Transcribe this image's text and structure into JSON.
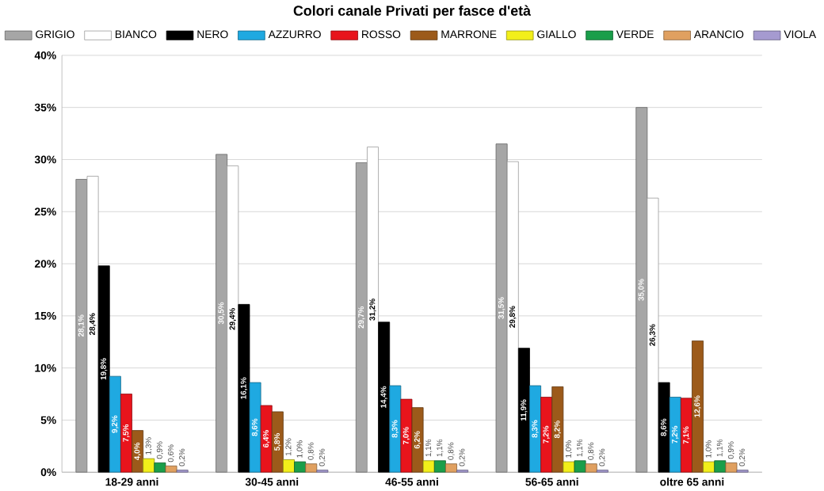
{
  "chart_data": {
    "type": "bar",
    "title": "Colori canale Privati per fasce d'età",
    "categories": [
      "18-29 anni",
      "30-45 anni",
      "46-55 anni",
      "56-65 anni",
      "oltre 65 anni"
    ],
    "series": [
      {
        "name": "GRIGIO",
        "color": "#a6a6a6",
        "values": [
          28.1,
          30.5,
          29.7,
          31.5,
          35.0
        ],
        "value_labels": [
          "28,1%",
          "30,5%",
          "29,7%",
          "31,5%",
          "35,0%"
        ]
      },
      {
        "name": "BIANCO",
        "color": "#ffffff",
        "values": [
          28.4,
          29.4,
          31.2,
          29.8,
          26.3
        ],
        "value_labels": [
          "28,4%",
          "29,4%",
          "31,2%",
          "29,8%",
          "26,3%"
        ]
      },
      {
        "name": "NERO",
        "color": "#000000",
        "values": [
          19.8,
          16.1,
          14.4,
          11.9,
          8.6
        ],
        "value_labels": [
          "19,8%",
          "16,1%",
          "14,4%",
          "11,9%",
          "8,6%"
        ]
      },
      {
        "name": "AZZURRO",
        "color": "#1fa9e1",
        "values": [
          9.2,
          8.6,
          8.3,
          8.3,
          7.2
        ],
        "value_labels": [
          "9,2%",
          "8,6%",
          "8,3%",
          "8,3%",
          "7,2%"
        ]
      },
      {
        "name": "ROSSO",
        "color": "#e8141c",
        "values": [
          7.5,
          6.4,
          7.0,
          7.2,
          7.1
        ],
        "value_labels": [
          "7,5%",
          "6,4%",
          "7,0%",
          "7,2%",
          "7,1%"
        ]
      },
      {
        "name": "MARRONE",
        "color": "#9c5a1a",
        "values": [
          4.0,
          5.8,
          6.2,
          8.2,
          12.6
        ],
        "value_labels": [
          "4,0%",
          "5,8%",
          "6,2%",
          "8,2%",
          "12,6%"
        ]
      },
      {
        "name": "GIALLO",
        "color": "#f2ef1a",
        "values": [
          1.3,
          1.2,
          1.1,
          1.0,
          1.0
        ],
        "value_labels": [
          "1,3%",
          "1,2%",
          "1,1%",
          "1,0%",
          "1,0%"
        ]
      },
      {
        "name": "VERDE",
        "color": "#1a9e4a",
        "values": [
          0.9,
          1.0,
          1.1,
          1.1,
          1.1
        ],
        "value_labels": [
          "0,9%",
          "1,0%",
          "1,1%",
          "1,1%",
          "1,1%"
        ]
      },
      {
        "name": "ARANCIO",
        "color": "#e0a060",
        "values": [
          0.6,
          0.8,
          0.8,
          0.8,
          0.9
        ],
        "value_labels": [
          "0,6%",
          "0,8%",
          "0,8%",
          "0,8%",
          "0,9%"
        ]
      },
      {
        "name": "VIOLA",
        "color": "#a59ad0",
        "values": [
          0.2,
          0.2,
          0.2,
          0.2,
          0.2
        ],
        "value_labels": [
          "0,2%",
          "0,2%",
          "0,2%",
          "0,2%",
          "0,2%"
        ]
      }
    ],
    "ylim": [
      0,
      40
    ],
    "yticks": [
      {
        "value": 0,
        "label": "0%"
      },
      {
        "value": 5,
        "label": "5%"
      },
      {
        "value": 10,
        "label": "10%"
      },
      {
        "value": 15,
        "label": "15%"
      },
      {
        "value": 20,
        "label": "20%"
      },
      {
        "value": 25,
        "label": "25%"
      },
      {
        "value": 30,
        "label": "30%"
      },
      {
        "value": 35,
        "label": "35%"
      },
      {
        "value": 40,
        "label": "40%"
      }
    ],
    "grid": "y",
    "legend": "top"
  }
}
